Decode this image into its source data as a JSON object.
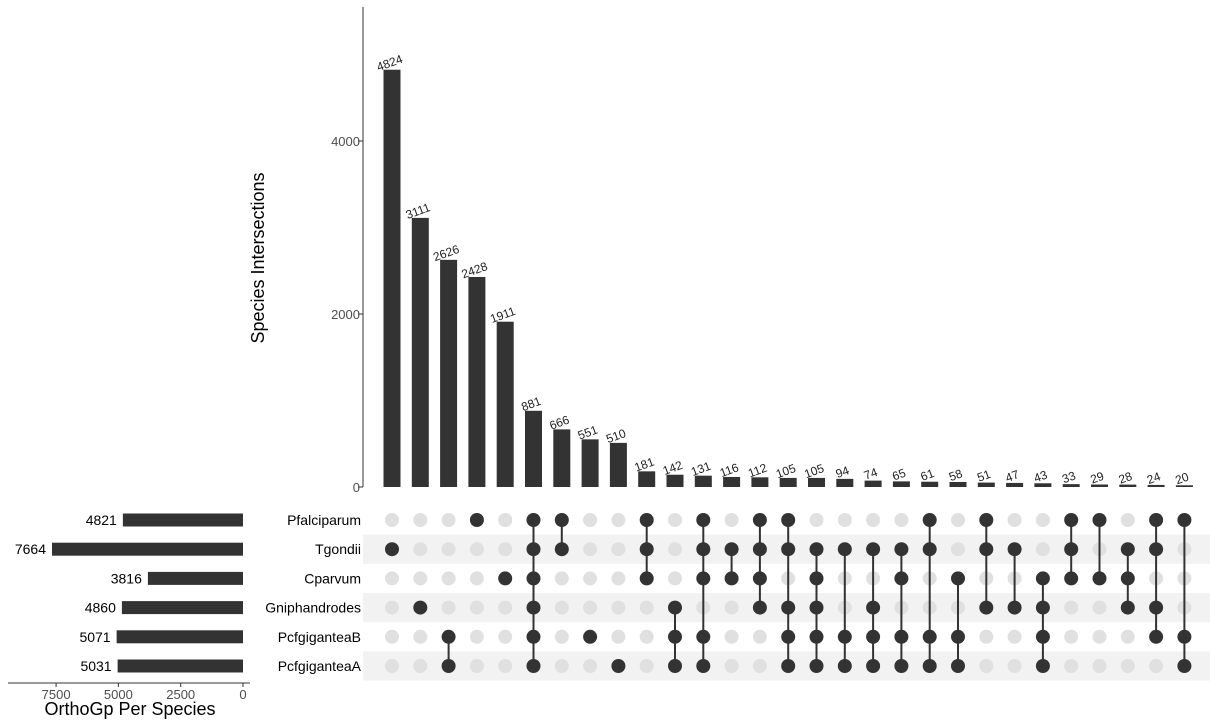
{
  "chart_data": {
    "type": "bar",
    "subtype": "upset",
    "ylabel": "Species Intersections",
    "xlabel_sets": "OrthoGp Per Species",
    "yticks": [
      0,
      2000,
      4000
    ],
    "ylim": [
      0,
      5000
    ],
    "set_size_ticks": [
      7500,
      5000,
      2500,
      0
    ],
    "sets": [
      {
        "name": "Pfalciparum",
        "size": 4821
      },
      {
        "name": "Tgondii",
        "size": 7664
      },
      {
        "name": "Cparvum",
        "size": 3816
      },
      {
        "name": "Gniphandrodes",
        "size": 4860
      },
      {
        "name": "PcfgiganteaB",
        "size": 5071
      },
      {
        "name": "PcfgiganteaA",
        "size": 5031
      }
    ],
    "intersections": [
      {
        "value": 4824,
        "sets": [
          1
        ]
      },
      {
        "value": 3111,
        "sets": [
          3
        ]
      },
      {
        "value": 2626,
        "sets": [
          4,
          5
        ]
      },
      {
        "value": 2428,
        "sets": [
          0
        ]
      },
      {
        "value": 1911,
        "sets": [
          2
        ]
      },
      {
        "value": 881,
        "sets": [
          0,
          1,
          2,
          3,
          4,
          5
        ]
      },
      {
        "value": 666,
        "sets": [
          0,
          1
        ]
      },
      {
        "value": 551,
        "sets": [
          4
        ]
      },
      {
        "value": 510,
        "sets": [
          5
        ]
      },
      {
        "value": 181,
        "sets": [
          0,
          1,
          2
        ]
      },
      {
        "value": 142,
        "sets": [
          3,
          4,
          5
        ]
      },
      {
        "value": 131,
        "sets": [
          0,
          1,
          2,
          4,
          5
        ]
      },
      {
        "value": 116,
        "sets": [
          1,
          2
        ]
      },
      {
        "value": 112,
        "sets": [
          0,
          1,
          2,
          3
        ]
      },
      {
        "value": 105,
        "sets": [
          0,
          1,
          3,
          4,
          5
        ]
      },
      {
        "value": 105,
        "sets": [
          1,
          2,
          3,
          4,
          5
        ]
      },
      {
        "value": 94,
        "sets": [
          1,
          4,
          5
        ]
      },
      {
        "value": 74,
        "sets": [
          1,
          3,
          4,
          5
        ]
      },
      {
        "value": 65,
        "sets": [
          1,
          2,
          4,
          5
        ]
      },
      {
        "value": 61,
        "sets": [
          0,
          1,
          4,
          5
        ]
      },
      {
        "value": 58,
        "sets": [
          2,
          4,
          5
        ]
      },
      {
        "value": 51,
        "sets": [
          0,
          1,
          3
        ]
      },
      {
        "value": 47,
        "sets": [
          1,
          3
        ]
      },
      {
        "value": 43,
        "sets": [
          2,
          3,
          4,
          5
        ]
      },
      {
        "value": 33,
        "sets": [
          0,
          1,
          2
        ]
      },
      {
        "value": 29,
        "sets": [
          0,
          2
        ]
      },
      {
        "value": 28,
        "sets": [
          1,
          2,
          3
        ]
      },
      {
        "value": 24,
        "sets": [
          0,
          1,
          3,
          4
        ]
      },
      {
        "value": 20,
        "sets": [
          0,
          4,
          5
        ]
      }
    ],
    "colors": {
      "bar": "#333333",
      "dot_on": "#333333",
      "dot_off": "#e0e0e0",
      "stripe": "#f2f2f2"
    }
  }
}
